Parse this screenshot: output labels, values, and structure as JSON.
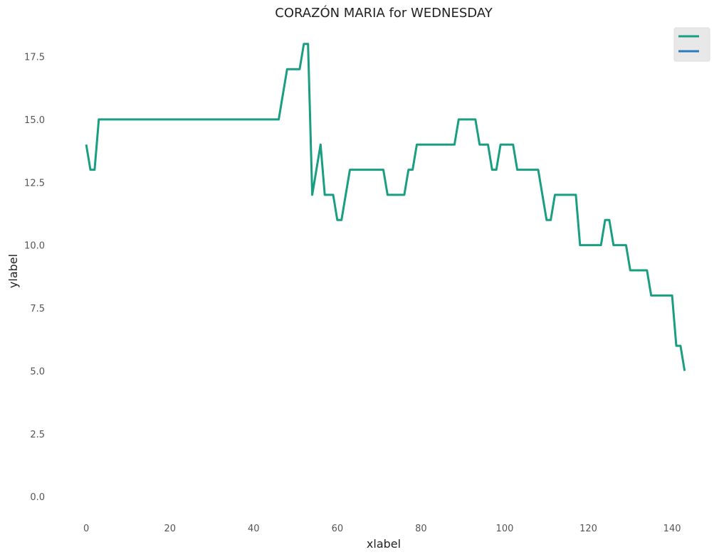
{
  "chart_data": {
    "type": "line",
    "title": "CORAZÓN MARIA for WEDNESDAY",
    "xlabel": "xlabel",
    "ylabel": "ylabel",
    "xlim": [
      -7,
      149
    ],
    "ylim": [
      -0.9,
      18.9
    ],
    "xticks": [
      "0",
      "20",
      "40",
      "60",
      "80",
      "100",
      "120",
      "140"
    ],
    "yticks": [
      "0.0",
      "2.5",
      "5.0",
      "7.5",
      "10.0",
      "12.5",
      "15.0",
      "17.5"
    ],
    "grid": false,
    "legend": "top-right",
    "series": [
      {
        "color": "#1a9e82",
        "x": [
          0,
          1,
          2,
          3,
          46,
          48,
          51,
          52,
          53,
          54,
          56,
          57,
          59,
          60,
          61,
          63,
          71,
          72,
          76,
          77,
          78,
          79,
          88,
          89,
          93,
          94,
          96,
          97,
          98,
          99,
          102,
          103,
          108,
          110,
          111,
          112,
          117,
          118,
          123,
          124,
          125,
          126,
          129,
          130,
          134,
          135,
          140,
          141,
          142,
          143
        ],
        "values": [
          14,
          13,
          13,
          15,
          15,
          17,
          17,
          18,
          18,
          12,
          14,
          12,
          12,
          11,
          11,
          13,
          13,
          12,
          12,
          13,
          13,
          14,
          14,
          15,
          15,
          14,
          14,
          13,
          13,
          14,
          14,
          13,
          13,
          11,
          11,
          12,
          12,
          10,
          10,
          11,
          11,
          10,
          10,
          9,
          9,
          8,
          8,
          6,
          6,
          5
        ]
      },
      {
        "color": "#2b7bbf",
        "x": [],
        "values": []
      }
    ]
  }
}
